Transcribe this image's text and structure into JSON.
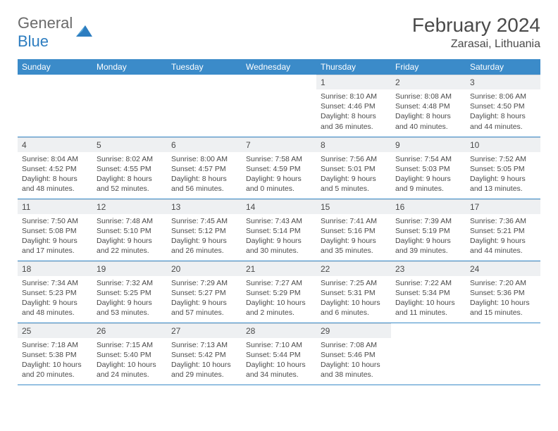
{
  "brand": {
    "part1": "General",
    "part2": "Blue"
  },
  "title": "February 2024",
  "location": "Zarasai, Lithuania",
  "colors": {
    "header_bg": "#3b8bc9",
    "header_text": "#ffffff",
    "daynum_bg": "#eef0f2",
    "border": "#3b8bc9",
    "text": "#4a4a4a",
    "brand_gray": "#6a6a6a",
    "brand_blue": "#2d7dc0"
  },
  "weekdays": [
    "Sunday",
    "Monday",
    "Tuesday",
    "Wednesday",
    "Thursday",
    "Friday",
    "Saturday"
  ],
  "weeks": [
    [
      null,
      null,
      null,
      null,
      {
        "n": "1",
        "sr": "8:10 AM",
        "ss": "4:46 PM",
        "dl": "8 hours and 36 minutes."
      },
      {
        "n": "2",
        "sr": "8:08 AM",
        "ss": "4:48 PM",
        "dl": "8 hours and 40 minutes."
      },
      {
        "n": "3",
        "sr": "8:06 AM",
        "ss": "4:50 PM",
        "dl": "8 hours and 44 minutes."
      }
    ],
    [
      {
        "n": "4",
        "sr": "8:04 AM",
        "ss": "4:52 PM",
        "dl": "8 hours and 48 minutes."
      },
      {
        "n": "5",
        "sr": "8:02 AM",
        "ss": "4:55 PM",
        "dl": "8 hours and 52 minutes."
      },
      {
        "n": "6",
        "sr": "8:00 AM",
        "ss": "4:57 PM",
        "dl": "8 hours and 56 minutes."
      },
      {
        "n": "7",
        "sr": "7:58 AM",
        "ss": "4:59 PM",
        "dl": "9 hours and 0 minutes."
      },
      {
        "n": "8",
        "sr": "7:56 AM",
        "ss": "5:01 PM",
        "dl": "9 hours and 5 minutes."
      },
      {
        "n": "9",
        "sr": "7:54 AM",
        "ss": "5:03 PM",
        "dl": "9 hours and 9 minutes."
      },
      {
        "n": "10",
        "sr": "7:52 AM",
        "ss": "5:05 PM",
        "dl": "9 hours and 13 minutes."
      }
    ],
    [
      {
        "n": "11",
        "sr": "7:50 AM",
        "ss": "5:08 PM",
        "dl": "9 hours and 17 minutes."
      },
      {
        "n": "12",
        "sr": "7:48 AM",
        "ss": "5:10 PM",
        "dl": "9 hours and 22 minutes."
      },
      {
        "n": "13",
        "sr": "7:45 AM",
        "ss": "5:12 PM",
        "dl": "9 hours and 26 minutes."
      },
      {
        "n": "14",
        "sr": "7:43 AM",
        "ss": "5:14 PM",
        "dl": "9 hours and 30 minutes."
      },
      {
        "n": "15",
        "sr": "7:41 AM",
        "ss": "5:16 PM",
        "dl": "9 hours and 35 minutes."
      },
      {
        "n": "16",
        "sr": "7:39 AM",
        "ss": "5:19 PM",
        "dl": "9 hours and 39 minutes."
      },
      {
        "n": "17",
        "sr": "7:36 AM",
        "ss": "5:21 PM",
        "dl": "9 hours and 44 minutes."
      }
    ],
    [
      {
        "n": "18",
        "sr": "7:34 AM",
        "ss": "5:23 PM",
        "dl": "9 hours and 48 minutes."
      },
      {
        "n": "19",
        "sr": "7:32 AM",
        "ss": "5:25 PM",
        "dl": "9 hours and 53 minutes."
      },
      {
        "n": "20",
        "sr": "7:29 AM",
        "ss": "5:27 PM",
        "dl": "9 hours and 57 minutes."
      },
      {
        "n": "21",
        "sr": "7:27 AM",
        "ss": "5:29 PM",
        "dl": "10 hours and 2 minutes."
      },
      {
        "n": "22",
        "sr": "7:25 AM",
        "ss": "5:31 PM",
        "dl": "10 hours and 6 minutes."
      },
      {
        "n": "23",
        "sr": "7:22 AM",
        "ss": "5:34 PM",
        "dl": "10 hours and 11 minutes."
      },
      {
        "n": "24",
        "sr": "7:20 AM",
        "ss": "5:36 PM",
        "dl": "10 hours and 15 minutes."
      }
    ],
    [
      {
        "n": "25",
        "sr": "7:18 AM",
        "ss": "5:38 PM",
        "dl": "10 hours and 20 minutes."
      },
      {
        "n": "26",
        "sr": "7:15 AM",
        "ss": "5:40 PM",
        "dl": "10 hours and 24 minutes."
      },
      {
        "n": "27",
        "sr": "7:13 AM",
        "ss": "5:42 PM",
        "dl": "10 hours and 29 minutes."
      },
      {
        "n": "28",
        "sr": "7:10 AM",
        "ss": "5:44 PM",
        "dl": "10 hours and 34 minutes."
      },
      {
        "n": "29",
        "sr": "7:08 AM",
        "ss": "5:46 PM",
        "dl": "10 hours and 38 minutes."
      },
      null,
      null
    ]
  ]
}
